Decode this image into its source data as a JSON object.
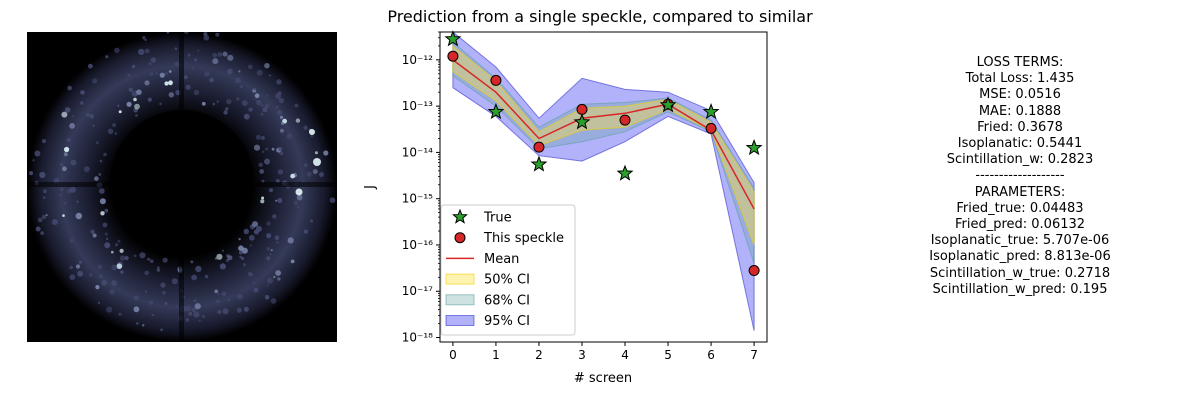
{
  "chart_data": {
    "type": "line",
    "title": "Prediction from a single speckle, compared to similar",
    "xlabel": "# screen",
    "ylabel": "J",
    "yscale": "log",
    "xlim": [
      -0.3,
      7.3
    ],
    "ylim": [
      8e-19,
      4e-12
    ],
    "x": [
      0,
      1,
      2,
      3,
      4,
      5,
      6,
      7
    ],
    "xticks": [
      "0",
      "1",
      "2",
      "3",
      "4",
      "5",
      "6",
      "7"
    ],
    "yticks": [
      {
        "value": 1e-12,
        "label": "10⁻¹²"
      },
      {
        "value": 1e-13,
        "label": "10⁻¹³"
      },
      {
        "value": 1e-14,
        "label": "10⁻¹⁴"
      },
      {
        "value": 1e-15,
        "label": "10⁻¹⁵"
      },
      {
        "value": 1e-16,
        "label": "10⁻¹⁶"
      },
      {
        "value": 1e-17,
        "label": "10⁻¹⁷"
      },
      {
        "value": 1e-18,
        "label": "10⁻¹⁸"
      }
    ],
    "series": [
      {
        "name": "True",
        "kind": "scatter",
        "marker": "star",
        "color": "#2ca02c",
        "values": [
          2.8e-12,
          7.5e-14,
          5.5e-15,
          4.5e-14,
          3.5e-15,
          1.05e-13,
          7.5e-14,
          1.25e-14
        ]
      },
      {
        "name": "This speckle",
        "kind": "scatter",
        "marker": "circle",
        "color": "#d62728",
        "values": [
          1.2e-12,
          3.6e-13,
          1.3e-14,
          8.5e-14,
          5e-14,
          1.1e-13,
          3.3e-14,
          2.8e-17
        ]
      },
      {
        "name": "Mean",
        "kind": "line",
        "color": "#d62728",
        "values": [
          1e-12,
          2e-13,
          2e-14,
          5.5e-14,
          7e-14,
          1.1e-13,
          3e-14,
          6e-16
        ]
      }
    ],
    "bands": [
      {
        "name": "95% CI",
        "color": "#0000ee",
        "opacity": 0.3,
        "edge": "#3333cc",
        "lower": [
          2.5e-13,
          6e-14,
          8.5e-15,
          6.5e-15,
          1.7e-14,
          6e-14,
          2.5e-14,
          1.4e-18
        ],
        "upper": [
          4e-12,
          7e-13,
          5.5e-14,
          4e-13,
          2.3e-13,
          2e-13,
          8e-14,
          2.2e-15
        ]
      },
      {
        "name": "68% CI",
        "color": "#5f9ea0",
        "opacity": 0.3,
        "edge": "#5f9ea0",
        "lower": [
          4.5e-13,
          1e-13,
          1.2e-14,
          1.7e-14,
          2.8e-14,
          7.5e-14,
          2.8e-14,
          4e-17
        ],
        "upper": [
          2.4e-12,
          4e-13,
          3.5e-14,
          1.1e-13,
          1.2e-13,
          1.5e-13,
          5e-14,
          1.7e-15
        ]
      },
      {
        "name": "50% CI",
        "color": "#ffe23c",
        "opacity": 0.4,
        "edge": "#f0d000",
        "lower": [
          5.5e-13,
          1.3e-13,
          1.4e-14,
          3e-14,
          3.5e-14,
          8.5e-14,
          3e-14,
          1e-16
        ],
        "upper": [
          2e-12,
          3.5e-13,
          2.8e-14,
          9e-14,
          1e-13,
          1.4e-13,
          4.5e-14,
          1.4e-15
        ]
      }
    ],
    "legend": {
      "placement": "lower-left",
      "entries": [
        "True",
        "This speckle",
        "Mean",
        "50% CI",
        "68% CI",
        "95% CI"
      ]
    },
    "grid": false
  },
  "loss_terms": [
    "LOSS TERMS:",
    "Total Loss: 1.435",
    "MSE: 0.0516",
    "MAE: 0.1888",
    "Fried: 0.3678",
    "Isoplanatic: 0.5441",
    "Scintillation_w: 0.2823",
    "-------------------",
    "PARAMETERS:",
    "Fried_true: 0.04483",
    "Fried_pred: 0.06132",
    "Isoplanatic_true: 5.707e-06",
    "Isoplanatic_pred: 8.813e-06",
    "Scintillation_w_true: 0.2718",
    "Scintillation_w_pred: 0.195"
  ]
}
